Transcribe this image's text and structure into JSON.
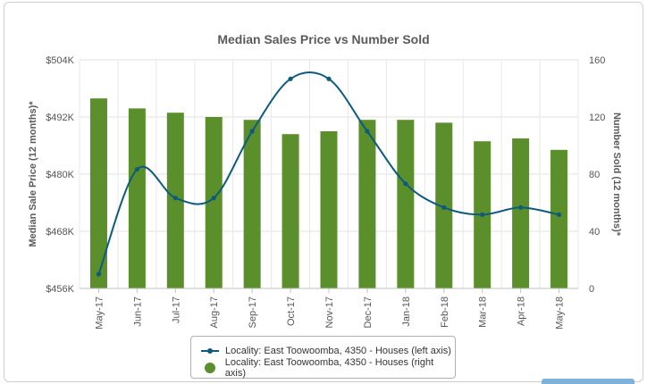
{
  "chart_data": {
    "type": "bar+line",
    "title": "Median Sales Price vs Number Sold",
    "categories": [
      "May-17",
      "Jun-17",
      "Jul-17",
      "Aug-17",
      "Sep-17",
      "Oct-17",
      "Nov-17",
      "Dec-17",
      "Jan-18",
      "Feb-18",
      "Mar-18",
      "Apr-18",
      "May-18"
    ],
    "y_left": {
      "label": "Median Sale Price (12 months)*",
      "min": 456,
      "max": 504,
      "ticks": [
        456,
        468,
        480,
        492,
        504
      ],
      "tick_labels": [
        "$456K",
        "$468K",
        "$480K",
        "$492K",
        "$504K"
      ]
    },
    "y_right": {
      "label": "Number Sold (12 months)*",
      "min": 0,
      "max": 160,
      "ticks": [
        0,
        40,
        80,
        120,
        160
      ],
      "tick_labels": [
        "0",
        "40",
        "80",
        "120",
        "160"
      ]
    },
    "series": [
      {
        "name": "Locality: East Toowoomba, 4350 - Houses (left axis)",
        "type": "line",
        "axis": "left",
        "color": "#0c5a7e",
        "values": [
          459,
          481,
          475,
          475,
          489,
          500,
          500,
          489,
          478,
          473,
          471.5,
          473,
          471.5
        ]
      },
      {
        "name": "Locality: East Toowoomba, 4350 - Houses (right axis)",
        "type": "bar",
        "axis": "right",
        "color": "#5b8f2b",
        "values": [
          133,
          126,
          123,
          120,
          118,
          108,
          110,
          118,
          118,
          116,
          103,
          105,
          97
        ]
      }
    ],
    "grid": true,
    "legend_position": "bottom"
  }
}
